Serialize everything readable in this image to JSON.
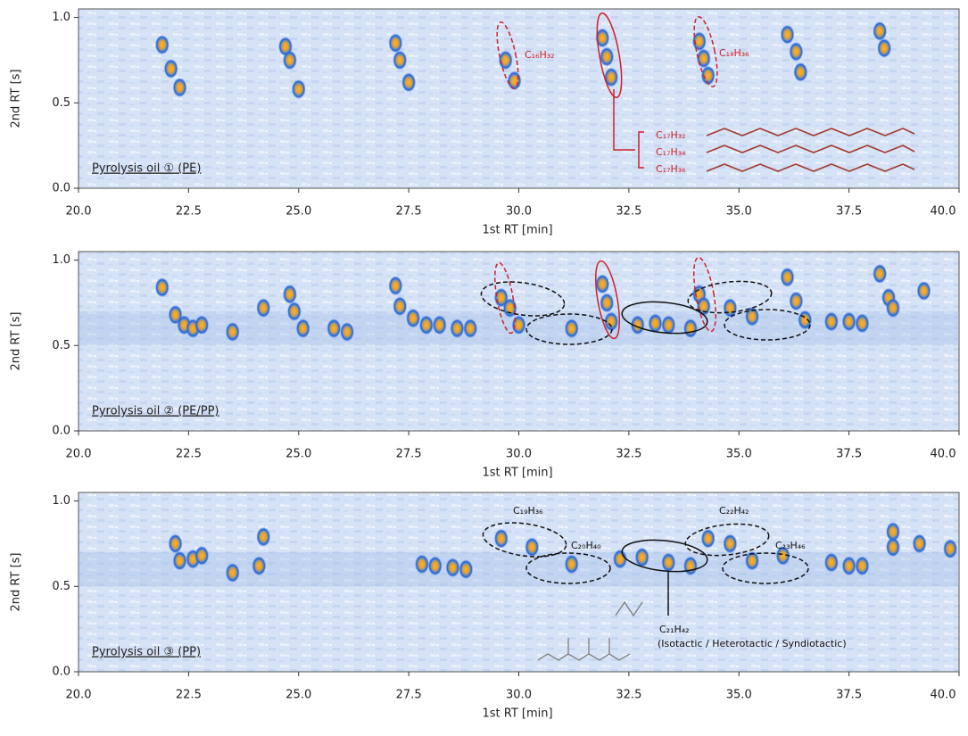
{
  "chart_data": [
    {
      "type": "scatter",
      "label": "Pyrolysis oil ① (PE)",
      "xlabel": "1st RT [min]",
      "ylabel": "2nd RT [s]",
      "xlim": [
        20,
        40
      ],
      "ylim": [
        0,
        1.05
      ],
      "xticks": [
        {
          "value": 20,
          "label": "20.0"
        },
        {
          "value": 22.5,
          "label": "22.5"
        },
        {
          "value": 25,
          "label": "25.0"
        },
        {
          "value": 27.5,
          "label": "27.5"
        },
        {
          "value": 30,
          "label": "30.0"
        },
        {
          "value": 32.5,
          "label": "32.5"
        },
        {
          "value": 35,
          "label": "35.0"
        },
        {
          "value": 37.5,
          "label": "37.5"
        },
        {
          "value": 40,
          "label": "40.0"
        }
      ],
      "yticks": [
        {
          "value": 0,
          "label": "0.0"
        },
        {
          "value": 0.5,
          "label": "0.5"
        },
        {
          "value": 1,
          "label": "1.0"
        }
      ],
      "color": "#f5a01e",
      "x": [
        21.9,
        22.1,
        22.3,
        24.7,
        24.8,
        25.0,
        27.2,
        27.3,
        27.5,
        29.7,
        29.9,
        31.9,
        32.0,
        32.1,
        34.1,
        34.2,
        34.3,
        36.1,
        36.3,
        36.4,
        38.2,
        38.3
      ],
      "values": [
        0.84,
        0.7,
        0.59,
        0.83,
        0.75,
        0.58,
        0.85,
        0.75,
        0.62,
        0.75,
        0.63,
        0.88,
        0.77,
        0.65,
        0.86,
        0.76,
        0.66,
        0.9,
        0.8,
        0.68,
        0.92,
        0.82
      ],
      "annotations": [
        "C₁₆H₃₂",
        "C₁₈H₃₆",
        "C₁₇H₃₂",
        "C₁₇H₃₄",
        "C₁₇H₃₆"
      ]
    },
    {
      "type": "scatter",
      "label": "Pyrolysis oil ② (PE/PP)",
      "xlabel": "1st RT [min]",
      "ylabel": "2nd RT [s]",
      "xlim": [
        20,
        40
      ],
      "ylim": [
        0,
        1.05
      ],
      "xticks": [
        {
          "value": 20,
          "label": "20.0"
        },
        {
          "value": 22.5,
          "label": "22.5"
        },
        {
          "value": 25,
          "label": "25.0"
        },
        {
          "value": 27.5,
          "label": "27.5"
        },
        {
          "value": 30,
          "label": "30.0"
        },
        {
          "value": 32.5,
          "label": "32.5"
        },
        {
          "value": 35,
          "label": "35.0"
        },
        {
          "value": 37.5,
          "label": "37.5"
        },
        {
          "value": 40,
          "label": "40.0"
        }
      ],
      "yticks": [
        {
          "value": 0,
          "label": "0.0"
        },
        {
          "value": 0.5,
          "label": "0.5"
        },
        {
          "value": 1,
          "label": "1.0"
        }
      ],
      "color": "#f5a01e",
      "x": [
        21.9,
        22.2,
        22.4,
        22.6,
        22.8,
        23.5,
        24.2,
        24.8,
        24.9,
        25.1,
        25.8,
        26.1,
        27.2,
        27.3,
        27.6,
        27.9,
        28.2,
        28.6,
        28.9,
        29.6,
        29.8,
        30.0,
        31.2,
        31.9,
        32.0,
        32.1,
        32.7,
        33.1,
        33.4,
        33.9,
        34.1,
        34.2,
        34.8,
        35.3,
        36.1,
        36.3,
        36.5,
        37.1,
        37.5,
        37.8,
        38.2,
        38.4,
        38.5,
        39.2
      ],
      "values": [
        0.84,
        0.68,
        0.62,
        0.6,
        0.62,
        0.58,
        0.72,
        0.8,
        0.7,
        0.6,
        0.6,
        0.58,
        0.85,
        0.73,
        0.66,
        0.62,
        0.62,
        0.6,
        0.6,
        0.78,
        0.72,
        0.62,
        0.6,
        0.86,
        0.75,
        0.64,
        0.62,
        0.63,
        0.62,
        0.6,
        0.8,
        0.73,
        0.72,
        0.67,
        0.9,
        0.76,
        0.65,
        0.64,
        0.64,
        0.63,
        0.92,
        0.78,
        0.72,
        0.82
      ],
      "annotations": []
    },
    {
      "type": "scatter",
      "label": "Pyrolysis oil ③ (PP)",
      "xlabel": "1st RT [min]",
      "ylabel": "2nd RT [s]",
      "xlim": [
        20,
        40
      ],
      "ylim": [
        0,
        1.05
      ],
      "xticks": [
        {
          "value": 20,
          "label": "20.0"
        },
        {
          "value": 22.5,
          "label": "22.5"
        },
        {
          "value": 25,
          "label": "25.0"
        },
        {
          "value": 27.5,
          "label": "27.5"
        },
        {
          "value": 30,
          "label": "30.0"
        },
        {
          "value": 32.5,
          "label": "32.5"
        },
        {
          "value": 35,
          "label": "35.0"
        },
        {
          "value": 37.5,
          "label": "37.5"
        },
        {
          "value": 40,
          "label": "40.0"
        }
      ],
      "yticks": [
        {
          "value": 0,
          "label": "0.0"
        },
        {
          "value": 0.5,
          "label": "0.5"
        },
        {
          "value": 1,
          "label": "1.0"
        }
      ],
      "color": "#f5a01e",
      "x": [
        22.2,
        22.3,
        22.6,
        22.8,
        23.5,
        24.1,
        24.2,
        27.8,
        28.1,
        28.5,
        28.8,
        29.6,
        30.3,
        31.2,
        32.3,
        32.8,
        33.4,
        33.9,
        34.3,
        34.8,
        35.3,
        36.0,
        37.1,
        37.5,
        37.8,
        38.5,
        38.5,
        39.1,
        39.8
      ],
      "values": [
        0.75,
        0.65,
        0.66,
        0.68,
        0.58,
        0.62,
        0.79,
        0.63,
        0.62,
        0.61,
        0.6,
        0.78,
        0.73,
        0.63,
        0.66,
        0.67,
        0.64,
        0.62,
        0.78,
        0.75,
        0.65,
        0.68,
        0.64,
        0.62,
        0.62,
        0.82,
        0.73,
        0.75,
        0.72
      ],
      "annotations": [
        "C₁₉H₃₆",
        "C₂₀H₄₀",
        "C₂₁H₄₂",
        "(Isotactic / Heterotactic / Syndiotactic)",
        "C₂₂H₄₂",
        "C₂₃H₄₆"
      ]
    }
  ]
}
